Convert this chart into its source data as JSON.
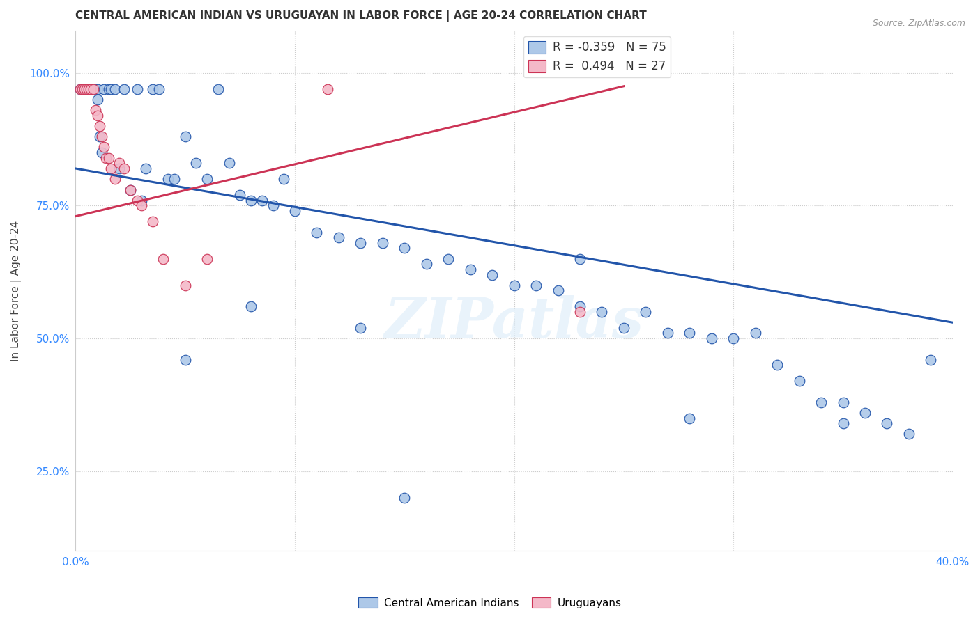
{
  "title": "CENTRAL AMERICAN INDIAN VS URUGUAYAN IN LABOR FORCE | AGE 20-24 CORRELATION CHART",
  "source": "Source: ZipAtlas.com",
  "ylabel": "In Labor Force | Age 20-24",
  "xlim": [
    0.0,
    0.4
  ],
  "ylim": [
    0.1,
    1.08
  ],
  "xticks": [
    0.0,
    0.1,
    0.2,
    0.3,
    0.4
  ],
  "yticks": [
    0.25,
    0.5,
    0.75,
    1.0
  ],
  "blue_color": "#adc8e8",
  "pink_color": "#f4b8c8",
  "blue_line_color": "#2255aa",
  "pink_line_color": "#cc3355",
  "legend_R_blue": "-0.359",
  "legend_N_blue": "75",
  "legend_R_pink": "0.494",
  "legend_N_pink": "27",
  "watermark": "ZIPatlas",
  "blue_scatter_x": [
    0.002,
    0.003,
    0.004,
    0.004,
    0.005,
    0.005,
    0.006,
    0.007,
    0.008,
    0.009,
    0.01,
    0.01,
    0.011,
    0.012,
    0.013,
    0.015,
    0.016,
    0.018,
    0.02,
    0.022,
    0.025,
    0.028,
    0.03,
    0.032,
    0.035,
    0.038,
    0.042,
    0.045,
    0.05,
    0.055,
    0.06,
    0.065,
    0.07,
    0.075,
    0.08,
    0.085,
    0.09,
    0.095,
    0.1,
    0.11,
    0.12,
    0.13,
    0.14,
    0.15,
    0.16,
    0.17,
    0.18,
    0.19,
    0.2,
    0.21,
    0.22,
    0.23,
    0.24,
    0.25,
    0.26,
    0.27,
    0.28,
    0.29,
    0.3,
    0.31,
    0.32,
    0.33,
    0.34,
    0.35,
    0.36,
    0.37,
    0.38,
    0.39,
    0.23,
    0.28,
    0.35,
    0.15,
    0.08,
    0.13,
    0.05
  ],
  "blue_scatter_y": [
    0.97,
    0.97,
    0.97,
    0.97,
    0.97,
    0.97,
    0.97,
    0.97,
    0.97,
    0.97,
    0.97,
    0.95,
    0.88,
    0.85,
    0.97,
    0.97,
    0.97,
    0.97,
    0.82,
    0.97,
    0.78,
    0.97,
    0.76,
    0.82,
    0.97,
    0.97,
    0.8,
    0.8,
    0.88,
    0.83,
    0.8,
    0.97,
    0.83,
    0.77,
    0.76,
    0.76,
    0.75,
    0.8,
    0.74,
    0.7,
    0.69,
    0.68,
    0.68,
    0.67,
    0.64,
    0.65,
    0.63,
    0.62,
    0.6,
    0.6,
    0.59,
    0.56,
    0.55,
    0.52,
    0.55,
    0.51,
    0.51,
    0.5,
    0.5,
    0.51,
    0.45,
    0.42,
    0.38,
    0.38,
    0.36,
    0.34,
    0.32,
    0.46,
    0.65,
    0.35,
    0.34,
    0.2,
    0.56,
    0.52,
    0.46
  ],
  "pink_scatter_x": [
    0.002,
    0.003,
    0.004,
    0.005,
    0.006,
    0.007,
    0.008,
    0.009,
    0.01,
    0.011,
    0.012,
    0.013,
    0.014,
    0.015,
    0.016,
    0.018,
    0.02,
    0.022,
    0.025,
    0.028,
    0.03,
    0.035,
    0.04,
    0.05,
    0.06,
    0.115,
    0.23
  ],
  "pink_scatter_y": [
    0.97,
    0.97,
    0.97,
    0.97,
    0.97,
    0.97,
    0.97,
    0.93,
    0.92,
    0.9,
    0.88,
    0.86,
    0.84,
    0.84,
    0.82,
    0.8,
    0.83,
    0.82,
    0.78,
    0.76,
    0.75,
    0.72,
    0.65,
    0.6,
    0.65,
    0.97,
    0.55
  ],
  "blue_trend_x": [
    0.0,
    0.4
  ],
  "blue_trend_y": [
    0.82,
    0.53
  ],
  "pink_trend_x": [
    0.0,
    0.25
  ],
  "pink_trend_y": [
    0.73,
    0.975
  ]
}
